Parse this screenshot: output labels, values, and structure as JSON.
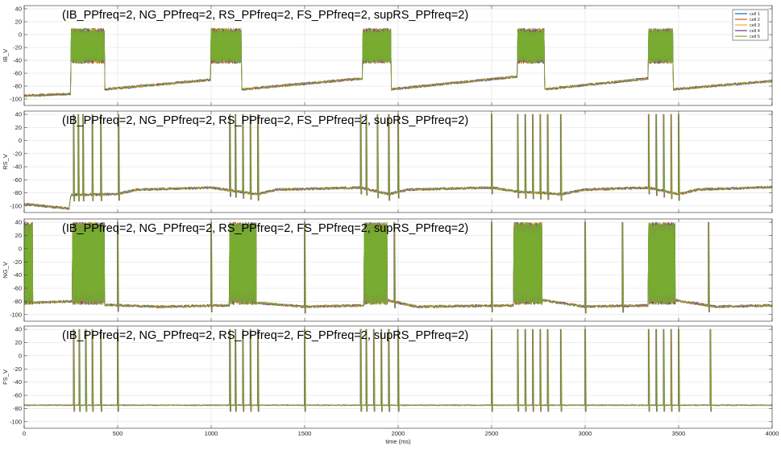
{
  "chart_data": [
    {
      "type": "line",
      "title": "(IB_PPfreq=2, NG_PPfreq=2, RS_PPfreq=2, FS_PPfreq=2, supRS_PPfreq=2)",
      "ylabel": "IB_V",
      "xlim": [
        0,
        4000
      ],
      "ylim": [
        -110,
        45
      ],
      "yticks": [
        -100,
        -80,
        -60,
        -40,
        -20,
        0,
        20,
        40
      ],
      "xticks": [
        0,
        500,
        1000,
        1500,
        2000,
        2500,
        3000,
        3500,
        4000
      ],
      "grid": true,
      "legend": {
        "position": "top-right",
        "entries": [
          "cell 1",
          "cell 2",
          "cell 3",
          "cell 4",
          "cell 5"
        ]
      },
      "series": [
        {
          "name": "cell 1",
          "color": "#0072bd"
        },
        {
          "name": "cell 2",
          "color": "#d95319"
        },
        {
          "name": "cell 3",
          "color": "#edb120"
        },
        {
          "name": "cell 4",
          "color": "#7e2f8e"
        },
        {
          "name": "cell 5",
          "color": "#77ac30"
        }
      ],
      "bursts_ms": [
        [
          250,
          430
        ],
        [
          1000,
          1160
        ],
        [
          1810,
          1960
        ],
        [
          2640,
          2780
        ],
        [
          3340,
          3470
        ]
      ],
      "burst_range_mV": [
        -45,
        10
      ],
      "baseline_mV": [
        [
          0,
          -95
        ],
        [
          250,
          -92
        ],
        [
          430,
          -85
        ],
        [
          1000,
          -70
        ],
        [
          1160,
          -85
        ],
        [
          1810,
          -68
        ],
        [
          1960,
          -85
        ],
        [
          2640,
          -65
        ],
        [
          2780,
          -85
        ],
        [
          3340,
          -68
        ],
        [
          3470,
          -85
        ],
        [
          4000,
          -72
        ]
      ]
    },
    {
      "type": "line",
      "title": "(IB_PPfreq=2, NG_PPfreq=2, RS_PPfreq=2, FS_PPfreq=2, supRS_PPfreq=2)",
      "ylabel": "RS_V",
      "xlim": [
        0,
        4000
      ],
      "ylim": [
        -110,
        45
      ],
      "yticks": [
        -100,
        -80,
        -60,
        -40,
        -20,
        0,
        20,
        40
      ],
      "xticks": [
        0,
        500,
        1000,
        1500,
        2000,
        2500,
        3000,
        3500,
        4000
      ],
      "grid": true,
      "spikes_ms": [
        265,
        290,
        315,
        365,
        410,
        505,
        1100,
        1130,
        1170,
        1210,
        1250,
        1800,
        1830,
        1890,
        1950,
        2000,
        2500,
        2640,
        2680,
        2720,
        2760,
        2800,
        2870,
        3340,
        3380,
        3420,
        3460,
        3500
      ],
      "baseline_mV": [
        [
          0,
          -97
        ],
        [
          240,
          -104
        ],
        [
          250,
          -83
        ],
        [
          500,
          -82
        ],
        [
          600,
          -75
        ],
        [
          1000,
          -72
        ],
        [
          1250,
          -82
        ],
        [
          1350,
          -75
        ],
        [
          1800,
          -72
        ],
        [
          1950,
          -82
        ],
        [
          2050,
          -75
        ],
        [
          2500,
          -72
        ],
        [
          2640,
          -78
        ],
        [
          2870,
          -82
        ],
        [
          3000,
          -75
        ],
        [
          3340,
          -72
        ],
        [
          3500,
          -82
        ],
        [
          3600,
          -75
        ],
        [
          4000,
          -71
        ]
      ]
    },
    {
      "type": "line",
      "title": "(IB_PPfreq=2, NG_PPfreq=2, RS_PPfreq=2, FS_PPfreq=2, supRS_PPfreq=2)",
      "ylabel": "NG_V",
      "xlim": [
        0,
        4000
      ],
      "ylim": [
        -110,
        45
      ],
      "yticks": [
        -100,
        -80,
        -60,
        -40,
        -20,
        0,
        20,
        40
      ],
      "xticks": [
        0,
        500,
        1000,
        1500,
        2000,
        2500,
        3000,
        3500,
        4000
      ],
      "grid": true,
      "bursts_ms": [
        [
          0,
          45
        ],
        [
          260,
          430
        ],
        [
          1100,
          1240
        ],
        [
          1820,
          1940
        ],
        [
          2620,
          2770
        ],
        [
          3340,
          3480
        ]
      ],
      "burst_range_mV": [
        -85,
        40
      ],
      "spikes_ms": [
        500,
        1000,
        1500,
        1980,
        2500,
        3000,
        3200,
        3660
      ],
      "baseline_mV": [
        [
          0,
          -80
        ],
        [
          45,
          -82
        ],
        [
          250,
          -80
        ],
        [
          430,
          -85
        ],
        [
          700,
          -88
        ],
        [
          1100,
          -86
        ],
        [
          1240,
          -82
        ],
        [
          1500,
          -88
        ],
        [
          1820,
          -86
        ],
        [
          1940,
          -78
        ],
        [
          2100,
          -88
        ],
        [
          2620,
          -86
        ],
        [
          2770,
          -78
        ],
        [
          3000,
          -88
        ],
        [
          3340,
          -86
        ],
        [
          3480,
          -78
        ],
        [
          3700,
          -88
        ],
        [
          4000,
          -86
        ]
      ]
    },
    {
      "type": "line",
      "title": "(IB_PPfreq=2, NG_PPfreq=2, RS_PPfreq=2, FS_PPfreq=2, supRS_PPfreq=2)",
      "ylabel": "FS_V",
      "xlabel": "time (ms)",
      "xlim": [
        0,
        4000
      ],
      "ylim": [
        -110,
        45
      ],
      "yticks": [
        -100,
        -80,
        -60,
        -40,
        -20,
        0,
        20,
        40
      ],
      "xticks": [
        0,
        500,
        1000,
        1500,
        2000,
        2500,
        3000,
        3500,
        4000
      ],
      "grid": true,
      "spikes_ms": [
        265,
        295,
        330,
        365,
        410,
        500,
        1100,
        1130,
        1170,
        1210,
        1250,
        1500,
        1800,
        1830,
        1870,
        1910,
        1950,
        2000,
        2500,
        2640,
        2680,
        2720,
        2760,
        2800,
        2870,
        3000,
        3340,
        3380,
        3420,
        3460,
        3500,
        3670
      ],
      "baseline_mV": [
        [
          0,
          -75
        ],
        [
          4000,
          -75
        ]
      ]
    }
  ]
}
